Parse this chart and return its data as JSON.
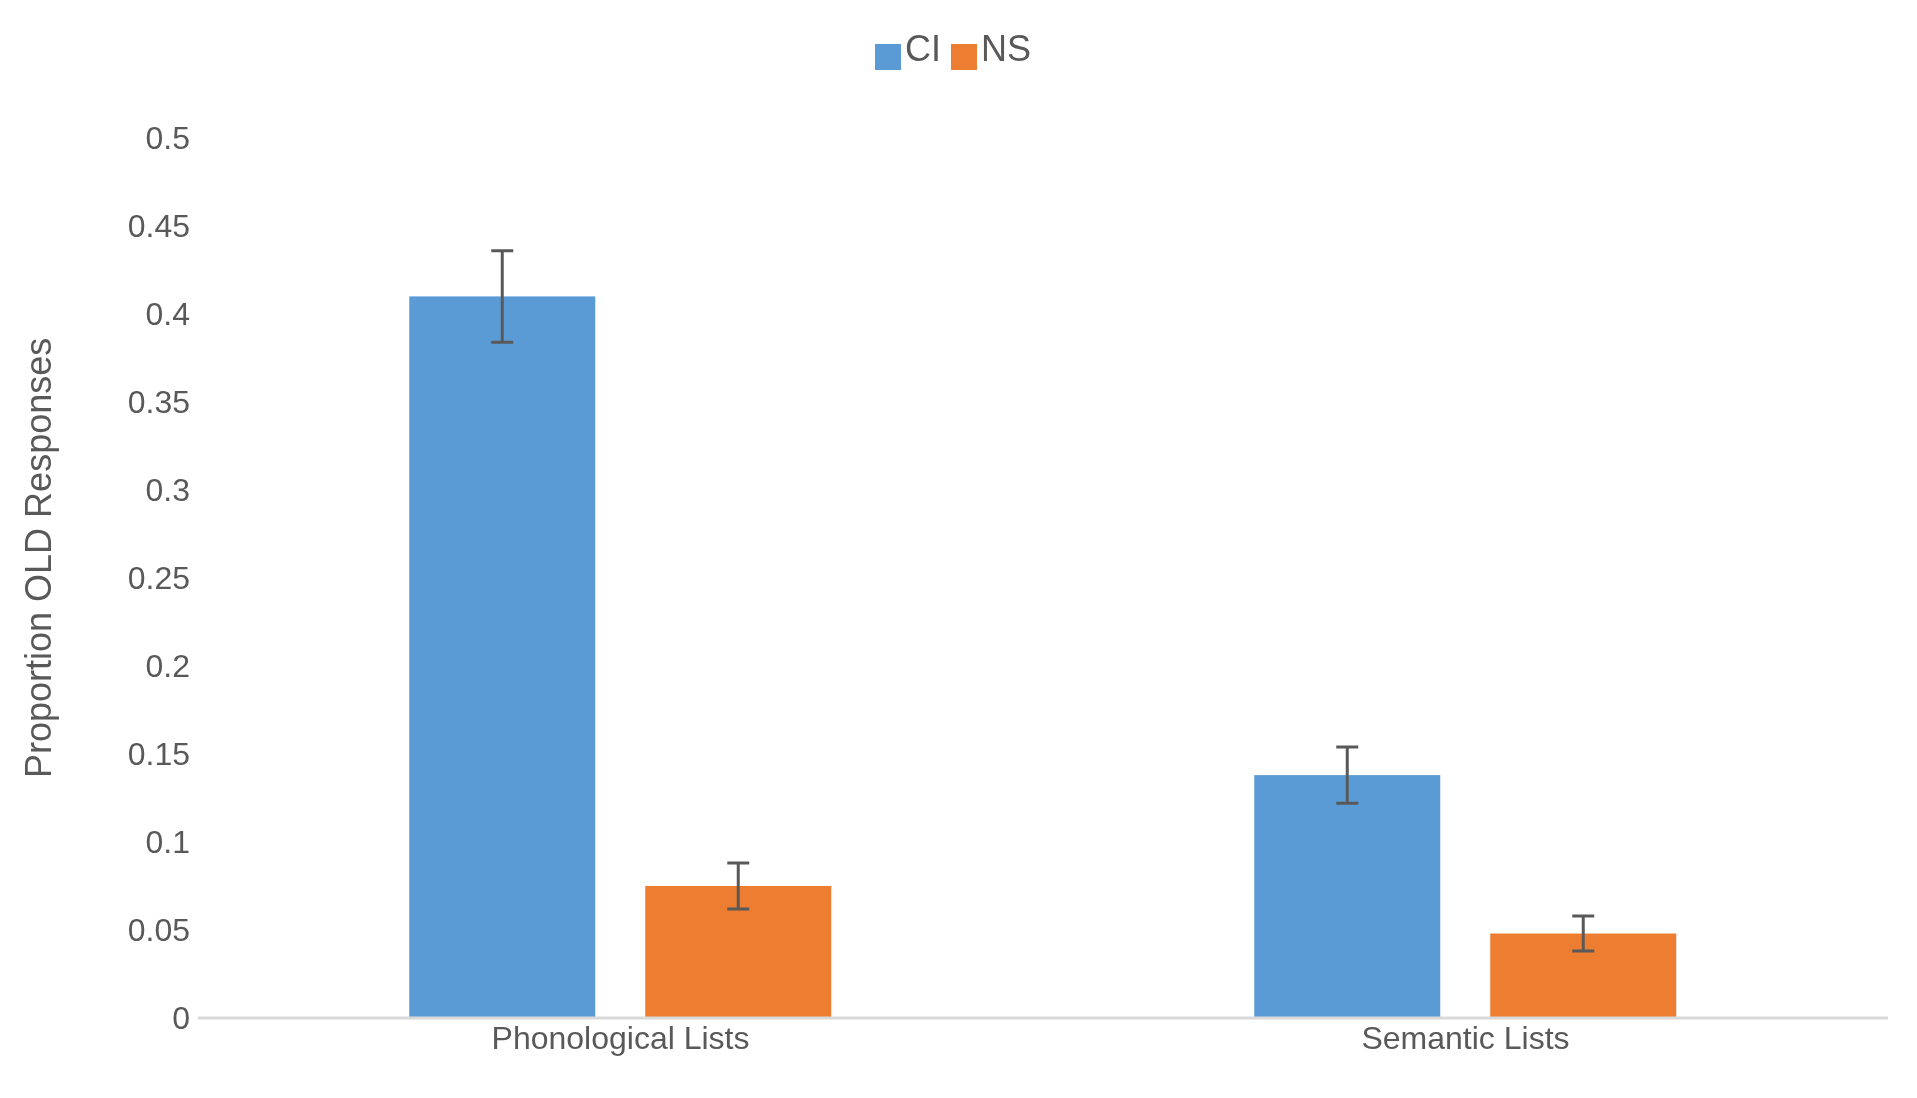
{
  "chart_data": {
    "type": "bar",
    "ylabel": "Proportion OLD Responses",
    "categories": [
      "Phonological Lists",
      "Semantic Lists"
    ],
    "series": [
      {
        "name": "CI",
        "color": "#5b9bd5",
        "values": [
          0.41,
          0.138
        ],
        "errors": [
          0.026,
          0.016
        ]
      },
      {
        "name": "NS",
        "color": "#ed7d31",
        "values": [
          0.075,
          0.048
        ],
        "errors": [
          0.013,
          0.01
        ]
      }
    ],
    "ylim": [
      0,
      0.5
    ],
    "yticks": [
      0,
      0.05,
      0.1,
      0.15,
      0.2,
      0.25,
      0.3,
      0.35,
      0.4,
      0.45,
      0.5
    ],
    "grid": false,
    "legend": "top"
  }
}
